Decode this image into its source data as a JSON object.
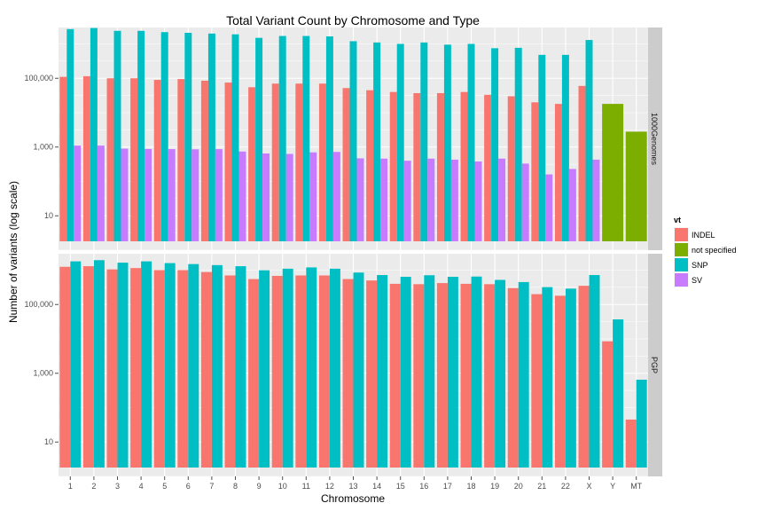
{
  "chart_data": {
    "type": "bar",
    "title": "Total Variant Count by Chromosome and Type",
    "xlabel": "Chromosome",
    "ylabel": "Number of variants (log scale)",
    "y_scale": "log10",
    "ylim": [
      1,
      3000000
    ],
    "y_ticks": [
      10,
      1000,
      100000
    ],
    "y_tick_labels": [
      "10",
      "1,000",
      "100,000"
    ],
    "grid": true,
    "legend_position": "right",
    "legend": {
      "title": "vt",
      "entries": [
        {
          "name": "INDEL",
          "color": "#f8766d"
        },
        {
          "name": "not specified",
          "color": "#7cae00"
        },
        {
          "name": "SNP",
          "color": "#00bfc4"
        },
        {
          "name": "SV",
          "color": "#c77cff"
        }
      ]
    },
    "categories": [
      "1",
      "2",
      "3",
      "4",
      "5",
      "6",
      "7",
      "8",
      "9",
      "10",
      "11",
      "12",
      "13",
      "14",
      "15",
      "16",
      "17",
      "18",
      "19",
      "20",
      "21",
      "22",
      "X",
      "Y",
      "MT"
    ],
    "panels": [
      {
        "name": "1000Genomes",
        "series": [
          {
            "name": "INDEL",
            "values": [
              110000,
              115000,
              100000,
              100000,
              90000,
              95000,
              85000,
              75000,
              55000,
              70000,
              70000,
              70000,
              52000,
              45000,
              40000,
              37000,
              37000,
              40000,
              33000,
              30000,
              20000,
              18000,
              60000,
              null,
              null
            ]
          },
          {
            "name": "not specified",
            "values": [
              null,
              null,
              null,
              null,
              null,
              null,
              null,
              null,
              null,
              null,
              null,
              null,
              null,
              null,
              null,
              null,
              null,
              null,
              null,
              null,
              null,
              null,
              null,
              18000,
              2800
            ]
          },
          {
            "name": "SNP",
            "values": [
              2700000,
              2900000,
              2400000,
              2400000,
              2200000,
              2100000,
              2000000,
              1900000,
              1500000,
              1700000,
              1700000,
              1650000,
              1200000,
              1100000,
              1000000,
              1100000,
              950000,
              1000000,
              750000,
              770000,
              480000,
              480000,
              1300000,
              null,
              null
            ]
          },
          {
            "name": "SV",
            "values": [
              1100,
              1100,
              900,
              880,
              870,
              860,
              870,
              740,
              650,
              630,
              700,
              720,
              470,
              460,
              400,
              460,
              430,
              380,
              460,
              330,
              160,
              230,
              430,
              null,
              null
            ]
          }
        ]
      },
      {
        "name": "PGP",
        "series": [
          {
            "name": "INDEL",
            "values": [
              1250000,
              1300000,
              1050000,
              1150000,
              1000000,
              1000000,
              880000,
              700000,
              550000,
              680000,
              700000,
              700000,
              550000,
              500000,
              400000,
              390000,
              420000,
              400000,
              390000,
              300000,
              200000,
              180000,
              350000,
              8500,
              45
            ]
          },
          {
            "name": "SNP",
            "values": [
              1800000,
              1950000,
              1650000,
              1800000,
              1600000,
              1500000,
              1400000,
              1300000,
              990000,
              1100000,
              1200000,
              1100000,
              850000,
              720000,
              640000,
              710000,
              640000,
              650000,
              520000,
              450000,
              320000,
              290000,
              720000,
              37000,
              650
            ]
          }
        ]
      }
    ]
  }
}
